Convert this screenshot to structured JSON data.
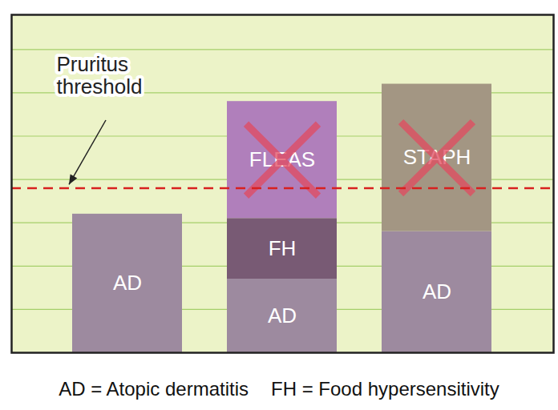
{
  "chart_data": {
    "type": "bar",
    "stacked": true,
    "categories": [
      null,
      null,
      null
    ],
    "series": [
      {
        "name": "AD",
        "color": "#9d8a9f",
        "values": [
          3.2,
          1.7,
          2.8
        ]
      },
      {
        "name": "FH",
        "color": "#785a74",
        "values": [
          null,
          1.4,
          null
        ]
      },
      {
        "name": "FLEAS",
        "color": "#b07fbb",
        "values": [
          null,
          2.7,
          null
        ],
        "marker": "x"
      },
      {
        "name": "STAPH",
        "color": "#a39683",
        "values": [
          null,
          null,
          3.4
        ],
        "marker": "x"
      }
    ],
    "ylim": [
      0,
      7.8
    ],
    "yticks": [
      0,
      1,
      2,
      3,
      4,
      5,
      6,
      7
    ],
    "grid": true,
    "tick_labels": false,
    "threshold": {
      "label": "Pruritus threshold",
      "value": 3.8
    },
    "footnotes": [
      "AD = Atopic dermatitis",
      "FH = Food hypersensitivity"
    ]
  }
}
